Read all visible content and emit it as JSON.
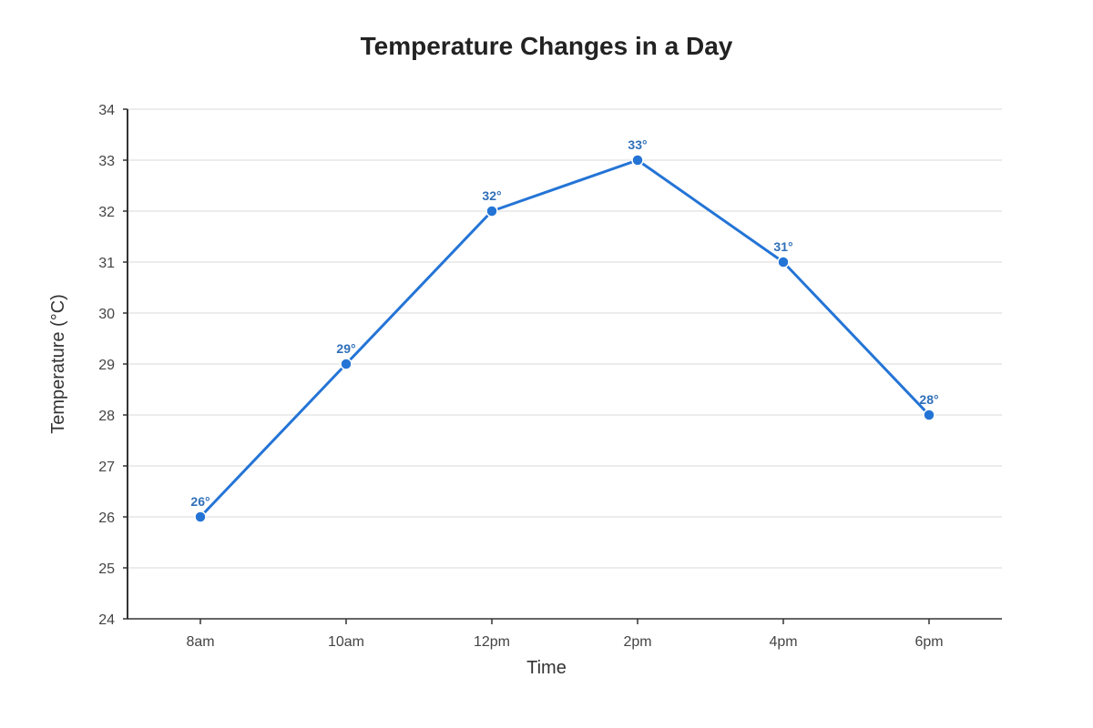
{
  "colors": {
    "line": "#2474d6",
    "data_label": "#2f6fb8",
    "grid": "#e6e6e6",
    "axis": "#333333"
  },
  "chart_data": {
    "type": "line",
    "title": "Temperature Changes in a Day",
    "xlabel": "Time",
    "ylabel": "Temperature (°C)",
    "categories": [
      "8am",
      "10am",
      "12pm",
      "2pm",
      "4pm",
      "6pm"
    ],
    "series": [
      {
        "values": [
          26,
          29,
          32,
          33,
          31,
          28
        ]
      }
    ],
    "data_labels": [
      "26°",
      "29°",
      "32°",
      "33°",
      "31°",
      "28°"
    ],
    "ylim": [
      24,
      34
    ],
    "yticks": [
      24,
      25,
      26,
      27,
      28,
      29,
      30,
      31,
      32,
      33,
      34
    ],
    "grid": true,
    "markers": true,
    "legend": "none"
  }
}
